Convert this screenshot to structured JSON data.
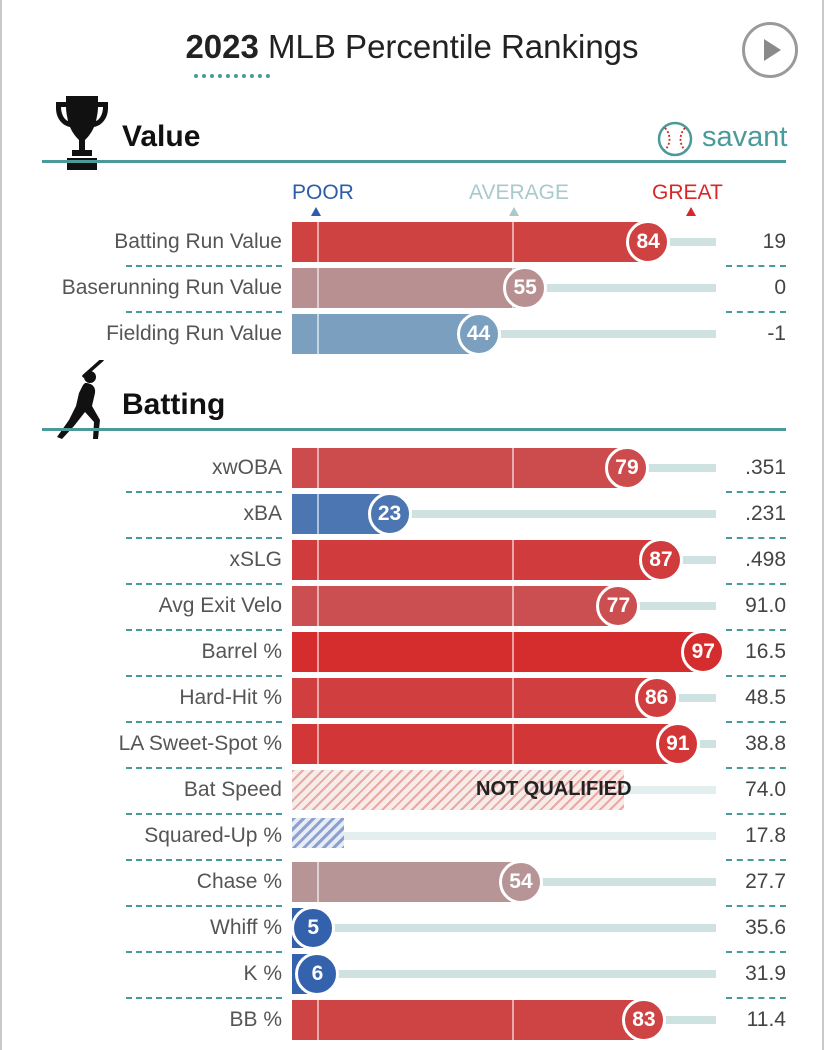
{
  "header": {
    "title_year": "2023",
    "title_rest": "MLB Percentile Rankings",
    "play_icon": "play-icon"
  },
  "scale": {
    "poor": "POOR",
    "average": "AVERAGE",
    "great": "GREAT"
  },
  "colors": {
    "accent": "#4a9a9a",
    "poor": "#2e5caa",
    "average": "#a9c9cc",
    "great": "#d62828"
  },
  "sections": [
    {
      "title": "Value",
      "icon": "trophy-icon",
      "logo_text": "savant",
      "logo_icon": "baseball-icon"
    },
    {
      "title": "Batting",
      "icon": "batter-icon"
    }
  ],
  "chart_data": {
    "type": "bar",
    "title": "2023 MLB Percentile Rankings",
    "xlim": [
      0,
      100
    ],
    "scale_labels": [
      "POOR",
      "AVERAGE",
      "GREAT"
    ],
    "groups": [
      {
        "name": "Value",
        "metrics": [
          {
            "label": "Batting Run Value",
            "percentile": 84,
            "value": "19"
          },
          {
            "label": "Baserunning Run Value",
            "percentile": 55,
            "value": "0"
          },
          {
            "label": "Fielding Run Value",
            "percentile": 44,
            "value": "-1"
          }
        ]
      },
      {
        "name": "Batting",
        "metrics": [
          {
            "label": "xwOBA",
            "percentile": 79,
            "value": ".351"
          },
          {
            "label": "xBA",
            "percentile": 23,
            "value": ".231"
          },
          {
            "label": "xSLG",
            "percentile": 87,
            "value": ".498"
          },
          {
            "label": "Avg Exit Velo",
            "percentile": 77,
            "value": "91.0"
          },
          {
            "label": "Barrel %",
            "percentile": 97,
            "value": "16.5"
          },
          {
            "label": "Hard-Hit %",
            "percentile": 86,
            "value": "48.5"
          },
          {
            "label": "LA Sweet-Spot %",
            "percentile": 91,
            "value": "38.8"
          },
          {
            "label": "Bat Speed",
            "percentile": null,
            "status": "NOT QUALIFIED",
            "value": "74.0"
          },
          {
            "label": "Squared-Up %",
            "percentile": null,
            "value": "17.8"
          },
          {
            "label": "Chase %",
            "percentile": 54,
            "value": "27.7"
          },
          {
            "label": "Whiff %",
            "percentile": 5,
            "value": "35.6"
          },
          {
            "label": "K %",
            "percentile": 6,
            "value": "31.9"
          },
          {
            "label": "BB %",
            "percentile": 83,
            "value": "11.4"
          }
        ]
      }
    ]
  }
}
